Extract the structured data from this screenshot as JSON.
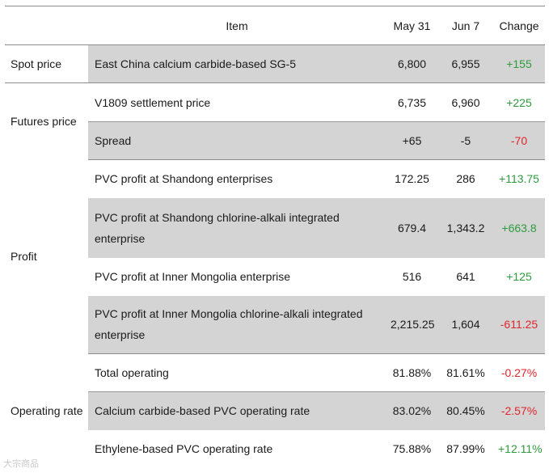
{
  "table": {
    "headers": {
      "item": "Item",
      "d1": "May 31",
      "d2": "Jun 7",
      "change": "Change"
    },
    "groups": [
      {
        "category": "Spot price",
        "rows": [
          {
            "item": "East China calcium carbide-based SG-5",
            "v1": "6,800",
            "v2": "6,955",
            "change": "+155"
          }
        ]
      },
      {
        "category": "Futures price",
        "rows": [
          {
            "item": "V1809 settlement price",
            "v1": "6,735",
            "v2": "6,960",
            "change": "+225"
          },
          {
            "item": "Spread",
            "v1": "+65",
            "v2": "-5",
            "change": "-70"
          }
        ]
      },
      {
        "category": "Profit",
        "rows": [
          {
            "item": "PVC profit at Shandong enterprises",
            "v1": "172.25",
            "v2": "286",
            "change": "+113.75"
          },
          {
            "item": "PVC profit at Shandong chlorine-alkali integrated enterprise",
            "v1": "679.4",
            "v2": "1,343.2",
            "change": "+663.8"
          },
          {
            "item": "PVC profit at Inner Mongolia enterprise",
            "v1": "516",
            "v2": "641",
            "change": "+125"
          },
          {
            "item": "PVC profit at Inner Mongolia chlorine-alkali integrated enterprise",
            "v1": "2,215.25",
            "v2": "1,604",
            "change": "-611.25"
          }
        ]
      },
      {
        "category": "Operating rate",
        "rows": [
          {
            "item": "Total operating",
            "v1": "81.88%",
            "v2": "81.61%",
            "change": "-0.27%"
          },
          {
            "item": "Calcium carbide-based PVC operating rate",
            "v1": "83.02%",
            "v2": "80.45%",
            "change": "-2.57%"
          },
          {
            "item": "Ethylene-based PVC operating rate",
            "v1": "75.88%",
            "v2": "87.99%",
            "change": "+12.11%"
          }
        ]
      }
    ]
  },
  "watermark": "大宗商品",
  "colors": {
    "positive": "#2e9b3e",
    "negative": "#e0252b",
    "shade": "#d4d4d4",
    "rule": "#8c8c8c"
  }
}
